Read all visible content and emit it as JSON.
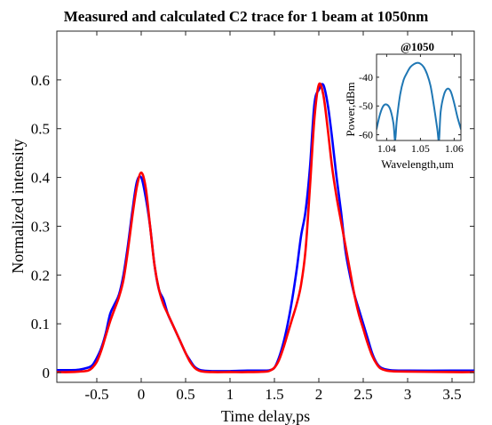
{
  "chart_data": [
    {
      "type": "line",
      "title": "Measured and calculated C2 trace  for 1 beam at 1050nm",
      "xlabel": "Time delay,ps",
      "ylabel": "Normalized intensity",
      "xlim": [
        -0.95,
        3.75
      ],
      "ylim": [
        -0.02,
        0.7
      ],
      "xticks": [
        -0.5,
        0,
        0.5,
        1,
        1.5,
        2,
        2.5,
        3,
        3.5
      ],
      "yticks": [
        0,
        0.1,
        0.2,
        0.3,
        0.4,
        0.5,
        0.6
      ],
      "xtick_labels": [
        "-0.5",
        "0",
        "0.5",
        "1",
        "1.5",
        "2",
        "2.5",
        "3",
        "3.5"
      ],
      "ytick_labels": [
        "0",
        "0.1",
        "0.2",
        "0.3",
        "0.4",
        "0.5",
        "0.6"
      ],
      "grid": false,
      "series": [
        {
          "color": "#0000ff",
          "x": [
            -0.95,
            -0.8,
            -0.7,
            -0.6,
            -0.55,
            -0.5,
            -0.45,
            -0.4,
            -0.35,
            -0.3,
            -0.25,
            -0.2,
            -0.15,
            -0.1,
            -0.05,
            0,
            0.05,
            0.1,
            0.15,
            0.2,
            0.25,
            0.3,
            0.35,
            0.4,
            0.45,
            0.5,
            0.55,
            0.6,
            0.65,
            0.7,
            0.8,
            1.0,
            1.2,
            1.4,
            1.45,
            1.5,
            1.55,
            1.6,
            1.65,
            1.7,
            1.75,
            1.8,
            1.85,
            1.9,
            1.95,
            2.0,
            2.05,
            2.1,
            2.15,
            2.2,
            2.25,
            2.3,
            2.35,
            2.4,
            2.45,
            2.5,
            2.55,
            2.6,
            2.65,
            2.7,
            2.8,
            3.0,
            3.5,
            3.75
          ],
          "y": [
            0.005,
            0.005,
            0.006,
            0.01,
            0.015,
            0.03,
            0.05,
            0.08,
            0.12,
            0.14,
            0.16,
            0.2,
            0.26,
            0.33,
            0.39,
            0.4,
            0.36,
            0.3,
            0.22,
            0.17,
            0.15,
            0.12,
            0.1,
            0.08,
            0.06,
            0.04,
            0.025,
            0.012,
            0.006,
            0.004,
            0.003,
            0.003,
            0.004,
            0.004,
            0.005,
            0.01,
            0.03,
            0.06,
            0.1,
            0.15,
            0.21,
            0.28,
            0.33,
            0.42,
            0.55,
            0.58,
            0.59,
            0.55,
            0.48,
            0.4,
            0.33,
            0.25,
            0.2,
            0.16,
            0.13,
            0.1,
            0.07,
            0.04,
            0.02,
            0.01,
            0.005,
            0.004,
            0.004,
            0.004
          ]
        },
        {
          "color": "#ff0000",
          "x": [
            -0.95,
            -0.8,
            -0.7,
            -0.6,
            -0.55,
            -0.5,
            -0.45,
            -0.4,
            -0.35,
            -0.3,
            -0.25,
            -0.2,
            -0.15,
            -0.1,
            -0.05,
            0,
            0.05,
            0.1,
            0.15,
            0.2,
            0.25,
            0.3,
            0.35,
            0.4,
            0.45,
            0.5,
            0.55,
            0.6,
            0.65,
            0.7,
            0.8,
            1.0,
            1.2,
            1.4,
            1.45,
            1.5,
            1.55,
            1.6,
            1.65,
            1.7,
            1.75,
            1.8,
            1.85,
            1.9,
            1.95,
            2.0,
            2.05,
            2.1,
            2.15,
            2.2,
            2.25,
            2.3,
            2.35,
            2.4,
            2.45,
            2.5,
            2.55,
            2.6,
            2.65,
            2.7,
            2.8,
            3.0,
            3.5,
            3.75
          ],
          "y": [
            0.001,
            0.001,
            0.002,
            0.004,
            0.01,
            0.022,
            0.045,
            0.075,
            0.105,
            0.13,
            0.155,
            0.19,
            0.25,
            0.32,
            0.38,
            0.41,
            0.38,
            0.3,
            0.22,
            0.17,
            0.14,
            0.12,
            0.1,
            0.08,
            0.06,
            0.04,
            0.022,
            0.01,
            0.004,
            0.002,
            0.001,
            0.001,
            0.001,
            0.002,
            0.004,
            0.01,
            0.025,
            0.05,
            0.08,
            0.11,
            0.14,
            0.18,
            0.25,
            0.38,
            0.52,
            0.59,
            0.57,
            0.5,
            0.42,
            0.36,
            0.31,
            0.26,
            0.21,
            0.16,
            0.12,
            0.09,
            0.06,
            0.035,
            0.018,
            0.008,
            0.003,
            0.002,
            0.001,
            0.001
          ]
        }
      ]
    },
    {
      "type": "line",
      "title": "@1050",
      "xlabel": "Wavelength,um",
      "ylabel": "Power,dBm",
      "xlim": [
        1.037,
        1.062
      ],
      "ylim": [
        -62,
        -32
      ],
      "xticks": [
        1.04,
        1.05,
        1.06
      ],
      "yticks": [
        -40,
        -50,
        -60
      ],
      "xtick_labels": [
        "1.04",
        "1.05",
        "1.06"
      ],
      "ytick_labels": [
        "-40",
        "-50",
        "-60"
      ],
      "series": [
        {
          "color": "#1f77b4",
          "x": [
            1.037,
            1.038,
            1.039,
            1.04,
            1.041,
            1.042,
            1.0425,
            1.043,
            1.044,
            1.045,
            1.046,
            1.047,
            1.048,
            1.049,
            1.05,
            1.051,
            1.052,
            1.053,
            1.054,
            1.055,
            1.0555,
            1.056,
            1.057,
            1.058,
            1.059,
            1.06,
            1.061,
            1.062
          ],
          "y": [
            -58,
            -53,
            -50,
            -49.5,
            -51,
            -56,
            -62,
            -55,
            -46,
            -41,
            -38.5,
            -36.5,
            -35.5,
            -35,
            -35.3,
            -36.5,
            -39,
            -43,
            -50,
            -58,
            -62,
            -52,
            -46,
            -44,
            -45,
            -49,
            -54,
            -58
          ]
        }
      ]
    }
  ]
}
